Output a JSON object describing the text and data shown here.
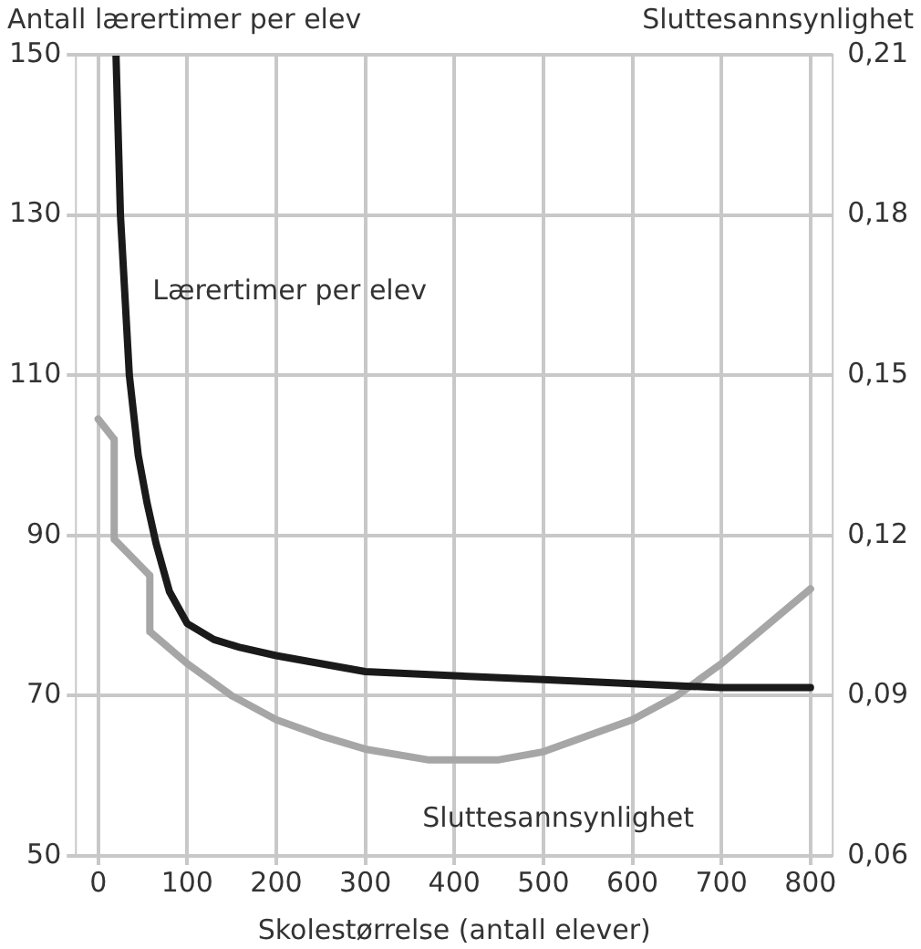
{
  "chart_data": {
    "type": "line",
    "xlabel": "Skolestørrelse (antall elever)",
    "ylabel": "Antall lærertimer per elev",
    "y2label": "Sluttesannsynlighet",
    "xlim": [
      -25,
      825
    ],
    "xticks": [
      0,
      100,
      200,
      300,
      400,
      500,
      600,
      700,
      800
    ],
    "ylim": [
      50,
      150
    ],
    "yticks": [
      50,
      70,
      90,
      110,
      130,
      150
    ],
    "y2lim": [
      0.06,
      0.21
    ],
    "y2ticks": [
      {
        "value": 0.06,
        "label": "0,06"
      },
      {
        "value": 0.09,
        "label": "0,09"
      },
      {
        "value": 0.12,
        "label": "0,12"
      },
      {
        "value": 0.15,
        "label": "0,15"
      },
      {
        "value": 0.18,
        "label": "0,18"
      },
      {
        "value": 0.21,
        "label": "0,21"
      }
    ],
    "grid": true,
    "legend": false,
    "series": [
      {
        "name": "Lærertimer per elev",
        "color": "#1a1a1a",
        "x": [
          20,
          25,
          35,
          45,
          55,
          65,
          80,
          100,
          130,
          160,
          200,
          250,
          300,
          400,
          500,
          600,
          700,
          800
        ],
        "values": [
          150,
          130,
          110,
          100,
          94,
          89,
          83,
          79,
          77,
          76,
          75,
          74,
          73,
          72.5,
          72,
          71.5,
          71,
          71
        ]
      },
      {
        "name": "Sluttesannsynlighet",
        "color": "#a6a6a6",
        "axis": "y2",
        "x": [
          0,
          18,
          18,
          58,
          58,
          100,
          150,
          200,
          250,
          300,
          370,
          450,
          500,
          550,
          600,
          650,
          700,
          800
        ],
        "values": [
          0.1418,
          0.138,
          0.1193,
          0.1125,
          0.102,
          0.096,
          0.09,
          0.0855,
          0.0825,
          0.08,
          0.078,
          0.078,
          0.0795,
          0.0825,
          0.0855,
          0.09,
          0.096,
          0.11
        ]
      }
    ]
  }
}
